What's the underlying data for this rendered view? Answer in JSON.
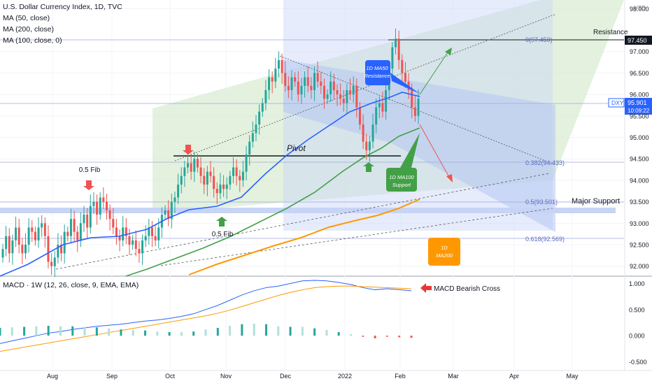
{
  "legend": {
    "title": "U.S. Dollar Currency Index, 1D, TVC",
    "ma50": "MA (50, close)",
    "ma200": "MA (200, close)",
    "ma100": "MA (100, close, 0)"
  },
  "macd_legend": "MACD · 1W (12, 26, close, 9, EMA, EMA)",
  "currency_label": "USD",
  "price_axis": [
    "98.000",
    "97.000",
    "96.500",
    "96.000",
    "95.500",
    "95.000",
    "94.500",
    "94.000",
    "93.500",
    "93.000",
    "92.500",
    "92.000"
  ],
  "macd_axis": [
    "1.000",
    "0.500",
    "0.000",
    "-0.500"
  ],
  "time_axis": [
    "Aug",
    "Sep",
    "Oct",
    "Nov",
    "Dec",
    "2022",
    "Feb",
    "Mar",
    "Apr",
    "May"
  ],
  "resistance_price": "97.450",
  "ticker": "DXY",
  "last_price": "95.901",
  "countdown": "10:09:22",
  "labels": {
    "resistance": "Resistance",
    "major_support": "Major Support",
    "pivot": "Pivot",
    "fib_top": "0(97.450)",
    "fib_382": "0.382(94.433)",
    "fib_5": "0.5(93.501)",
    "fib_618": "0.618(92.569)",
    "fib_left": "0.5 Fib",
    "fib_bottom": "0.5 Fib",
    "ma50_line1": "1D MA50",
    "ma50_line2": "Resistance",
    "ma100_line1": "1D MA100",
    "ma100_line2": "Support",
    "ma200_line1": "1D",
    "ma200_line2": "MA200",
    "macd_cross": "MACD Bearish Cross"
  },
  "colors": {
    "up": "#26a69a",
    "down": "#ef5350",
    "ma50": "#2962ff",
    "ma100": "#43a047",
    "ma200": "#ff9800",
    "macd": "#2962ff",
    "signal": "#ff9800"
  },
  "chart_data": {
    "type": "candlestick",
    "y_range": [
      91.8,
      98.2
    ],
    "x_range": [
      "2021-07-09",
      "2022-05-27"
    ],
    "candles_close": [
      92.4,
      92.7,
      92.3,
      92.6,
      92.9,
      92.5,
      92.3,
      92.5,
      92.9,
      92.8,
      92.6,
      92.9,
      93.0,
      92.7,
      92.1,
      92.0,
      92.2,
      92.5,
      92.3,
      92.8,
      92.7,
      93.1,
      92.8,
      92.6,
      93.0,
      93.2,
      92.9,
      93.4,
      93.5,
      93.2,
      93.6,
      93.5,
      93.3,
      93.1,
      92.9,
      92.7,
      92.6,
      92.9,
      92.7,
      92.5,
      92.6,
      92.4,
      92.3,
      92.6,
      92.7,
      92.9,
      92.7,
      92.6,
      92.9,
      93.2,
      93.3,
      93.1,
      93.5,
      93.6,
      93.9,
      94.1,
      94.3,
      94.4,
      94.2,
      94.5,
      94.3,
      94.1,
      93.9,
      94.2,
      94.1,
      93.8,
      93.7,
      93.9,
      93.8,
      93.9,
      94.1,
      94.3,
      94.1,
      94.0,
      94.2,
      94.6,
      94.9,
      95.1,
      95.3,
      95.6,
      95.8,
      96.1,
      96.4,
      96.3,
      96.6,
      96.8,
      96.5,
      96.2,
      96.1,
      96.4,
      96.3,
      96.0,
      96.2,
      96.4,
      96.2,
      96.1,
      96.5,
      96.3,
      96.2,
      95.9,
      96.0,
      96.3,
      96.1,
      96.0,
      95.9,
      95.8,
      96.1,
      96.0,
      96.2,
      95.7,
      95.3,
      94.9,
      94.7,
      94.9,
      95.3,
      95.7,
      95.8,
      95.6,
      96.1,
      96.6,
      97.1,
      97.3,
      96.8,
      96.5,
      96.3,
      96.1,
      95.7,
      95.5,
      95.9
    ],
    "annotations": {
      "resistance": 97.45,
      "pivot": 94.6,
      "major_support": 93.35
    },
    "fib_levels": [
      {
        "ratio": 0,
        "value": 97.45
      },
      {
        "ratio": 0.382,
        "value": 94.433
      },
      {
        "ratio": 0.5,
        "value": 93.501
      },
      {
        "ratio": 0.618,
        "value": 92.569
      }
    ],
    "macd": {
      "range": [
        -0.6,
        1.1
      ],
      "macd_line": [
        -0.15,
        -0.1,
        -0.05,
        0.0,
        0.05,
        0.08,
        0.12,
        0.15,
        0.18,
        0.2,
        0.22,
        0.25,
        0.28,
        0.3,
        0.33,
        0.37,
        0.42,
        0.5,
        0.58,
        0.68,
        0.78,
        0.86,
        0.92,
        0.95,
        1.0,
        1.05,
        1.06,
        1.05,
        1.02,
        0.98,
        0.92,
        0.88,
        0.9,
        0.88,
        0.86
      ],
      "signal_line": [
        -0.3,
        -0.26,
        -0.22,
        -0.18,
        -0.14,
        -0.1,
        -0.06,
        -0.02,
        0.02,
        0.06,
        0.1,
        0.14,
        0.18,
        0.22,
        0.26,
        0.3,
        0.34,
        0.38,
        0.43,
        0.49,
        0.56,
        0.63,
        0.7,
        0.77,
        0.83,
        0.88,
        0.92,
        0.94,
        0.95,
        0.95,
        0.94,
        0.93,
        0.92,
        0.91,
        0.9
      ],
      "histogram": [
        0.15,
        0.16,
        0.17,
        0.18,
        0.19,
        0.18,
        0.18,
        0.17,
        0.16,
        0.14,
        0.12,
        0.11,
        0.1,
        0.08,
        0.07,
        0.07,
        0.08,
        0.12,
        0.15,
        0.19,
        0.22,
        0.23,
        0.22,
        0.18,
        0.17,
        0.17,
        0.14,
        0.11,
        0.07,
        0.03,
        -0.02,
        -0.05,
        -0.02,
        -0.03,
        -0.04
      ]
    }
  }
}
